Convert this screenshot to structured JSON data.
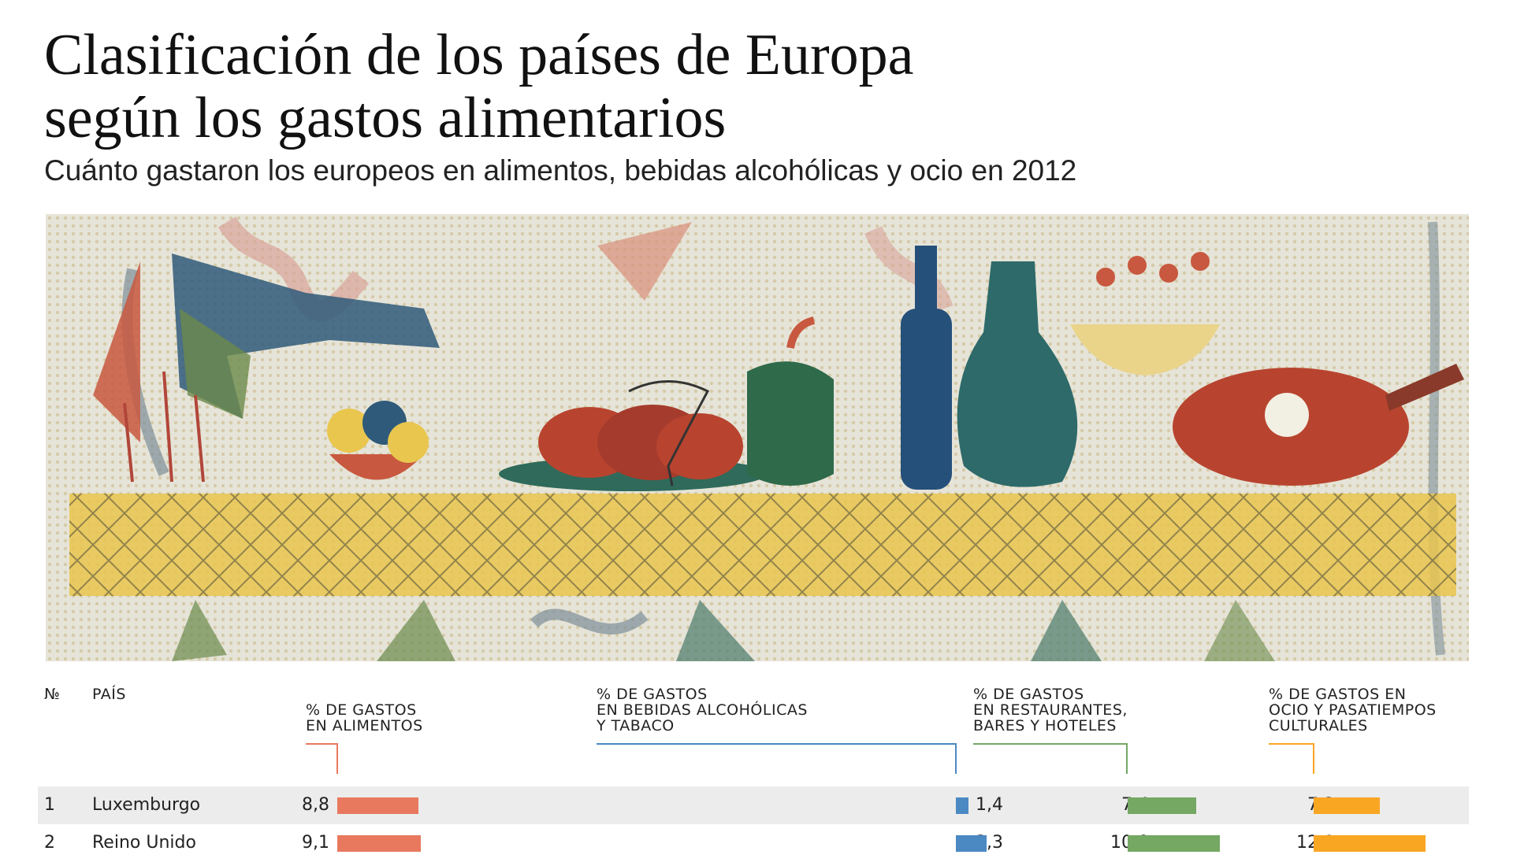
{
  "title_line1": "Clasificación de los países de Europa",
  "title_line2": "según los gastos alimentarios",
  "subtitle": "Cuánto gastaron los europeos en alimentos, bebidas alcohólicas y ocio en 2012",
  "colors": {
    "food": "#e8795e",
    "alcohol": "#4b89c3",
    "restaurants": "#74a863",
    "leisure": "#f9a623",
    "row_shade": "#ececec"
  },
  "table": {
    "headers": {
      "rank": "№",
      "country": "PAÍS",
      "food": "% DE GASTOS\nEN ALIMENTOS",
      "alcohol": "% DE GASTOS\nEN BEBIDAS ALCOHÓLICAS\nY TABACO",
      "restaurants": "% DE GASTOS\nEN RESTAURANTES,\nBARES Y HOTELES",
      "leisure": "% DE GASTOS EN\nOCIO Y PASATIEMPOS\nCULTURALES"
    },
    "rows": [
      {
        "rank": "1",
        "country": "Luxemburgo",
        "food": "8,8",
        "alcohol": "1,4",
        "restaurants": "7,4",
        "leisure": "7,2"
      },
      {
        "rank": "2",
        "country": "Reino Unido",
        "food": "9,1",
        "alcohol": "3,3",
        "restaurants": "10,0",
        "leisure": "12,1"
      }
    ]
  },
  "chart_data": {
    "type": "bar",
    "title": "Clasificación de los países de Europa según los gastos alimentarios",
    "subtitle": "Cuánto gastaron los europeos en alimentos, bebidas alcohólicas y ocio en 2012",
    "categories": [
      "Luxemburgo",
      "Reino Unido"
    ],
    "series": [
      {
        "name": "% DE GASTOS EN ALIMENTOS",
        "values": [
          8.8,
          9.1
        ]
      },
      {
        "name": "% DE GASTOS EN BEBIDAS ALCOHÓLICAS Y TABACO",
        "values": [
          1.4,
          3.3
        ]
      },
      {
        "name": "% DE GASTOS EN RESTAURANTES, BARES Y HOTELES",
        "values": [
          7.4,
          10.0
        ]
      },
      {
        "name": "% DE GASTOS EN OCIO Y PASATIEMPOS CULTURALES",
        "values": [
          7.2,
          12.1
        ]
      }
    ],
    "legend": "none",
    "grid": false
  }
}
